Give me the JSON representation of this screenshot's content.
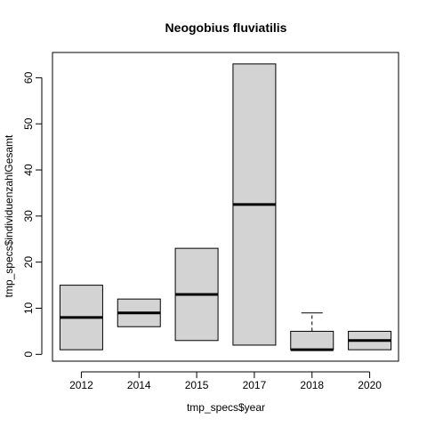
{
  "chart_data": {
    "type": "boxplot",
    "title": "Neogobius fluviatilis",
    "xlabel": "tmp_specs$year",
    "ylabel": "tmp_specs$individuenzahlGesamt",
    "categories": [
      "2012",
      "2014",
      "2015",
      "2017",
      "2018",
      "2020"
    ],
    "boxes": [
      {
        "label": "2012",
        "lower_whisker": 1,
        "q1": 1,
        "median": 8,
        "q3": 15,
        "upper_whisker": 15
      },
      {
        "label": "2014",
        "lower_whisker": 6,
        "q1": 6,
        "median": 9,
        "q3": 12,
        "upper_whisker": 12
      },
      {
        "label": "2015",
        "lower_whisker": 3,
        "q1": 3,
        "median": 13,
        "q3": 23,
        "upper_whisker": 23
      },
      {
        "label": "2017",
        "lower_whisker": 2,
        "q1": 2,
        "median": 32.5,
        "q3": 63,
        "upper_whisker": 63
      },
      {
        "label": "2018",
        "lower_whisker": 1,
        "q1": 1,
        "median": 1,
        "q3": 5,
        "upper_whisker": 9
      },
      {
        "label": "2020",
        "lower_whisker": 1,
        "q1": 1,
        "median": 3,
        "q3": 5,
        "upper_whisker": 5
      }
    ],
    "yticks": [
      0,
      10,
      20,
      30,
      40,
      50,
      60
    ],
    "ylim": [
      -1.48,
      65.48
    ],
    "grid": false,
    "box_fill": "#d3d3d3"
  }
}
